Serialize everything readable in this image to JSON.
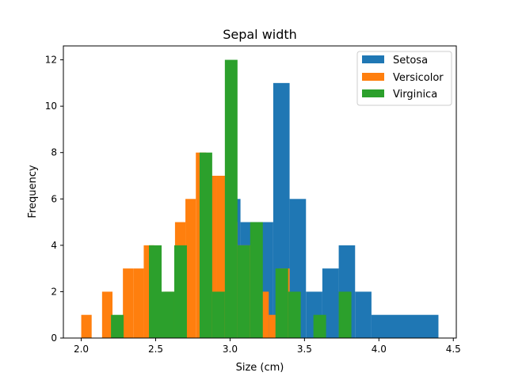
{
  "chart_data": {
    "type": "bar",
    "title": "Sepal width",
    "xlabel": "Size (cm)",
    "ylabel": "Frequency",
    "xlim": [
      1.88,
      4.52
    ],
    "ylim": [
      0,
      12.6
    ],
    "x_ticks": [
      2.0,
      2.5,
      3.0,
      3.5,
      4.0,
      4.5
    ],
    "x_tick_labels": [
      "2.0",
      "2.5",
      "3.0",
      "3.5",
      "4.0",
      "4.5"
    ],
    "y_ticks": [
      0,
      2,
      4,
      6,
      8,
      10,
      12
    ],
    "y_tick_labels": [
      "0",
      "2",
      "4",
      "6",
      "8",
      "10",
      "12"
    ],
    "legend_position": "top-right",
    "grid": false,
    "series": [
      {
        "name": "Setosa",
        "color": "#1f77b4",
        "bins": [
          {
            "x0": 3.29,
            "x1": 3.4,
            "value": 11
          },
          {
            "x0": 3.4,
            "x1": 3.51,
            "value": 6
          },
          {
            "x0": 3.51,
            "x1": 3.62,
            "value": 2
          },
          {
            "x0": 3.62,
            "x1": 3.73,
            "value": 3
          },
          {
            "x0": 3.73,
            "x1": 3.84,
            "value": 4
          },
          {
            "x0": 3.84,
            "x1": 3.95,
            "value": 2
          },
          {
            "x0": 3.95,
            "x1": 4.4,
            "value": 1
          },
          {
            "x0": 3.18,
            "x1": 3.29,
            "value": 5
          },
          {
            "x0": 3.07,
            "x1": 3.18,
            "value": 5
          },
          {
            "x0": 2.96,
            "x1": 3.07,
            "value": 6
          }
        ]
      },
      {
        "name": "Versicolor",
        "color": "#ff7f0e",
        "bins": [
          {
            "x0": 2.0,
            "x1": 2.07,
            "value": 1
          },
          {
            "x0": 2.14,
            "x1": 2.21,
            "value": 2
          },
          {
            "x0": 2.28,
            "x1": 2.35,
            "value": 3
          },
          {
            "x0": 2.35,
            "x1": 2.42,
            "value": 3
          },
          {
            "x0": 2.42,
            "x1": 2.49,
            "value": 4
          },
          {
            "x0": 2.56,
            "x1": 2.63,
            "value": 2
          },
          {
            "x0": 2.63,
            "x1": 2.7,
            "value": 5
          },
          {
            "x0": 2.7,
            "x1": 2.77,
            "value": 6
          },
          {
            "x0": 2.77,
            "x1": 2.84,
            "value": 8
          },
          {
            "x0": 2.84,
            "x1": 2.91,
            "value": 7
          },
          {
            "x0": 2.91,
            "x1": 2.98,
            "value": 7
          },
          {
            "x0": 2.98,
            "x1": 3.05,
            "value": 5
          },
          {
            "x0": 3.05,
            "x1": 3.12,
            "value": 4
          },
          {
            "x0": 3.12,
            "x1": 3.19,
            "value": 4
          },
          {
            "x0": 3.19,
            "x1": 3.26,
            "value": 2
          },
          {
            "x0": 3.26,
            "x1": 3.33,
            "value": 1
          },
          {
            "x0": 3.33,
            "x1": 3.4,
            "value": 3
          }
        ]
      },
      {
        "name": "Virginica",
        "color": "#2ca02c",
        "bins": [
          {
            "x0": 2.2,
            "x1": 2.285,
            "value": 1
          },
          {
            "x0": 2.455,
            "x1": 2.54,
            "value": 4
          },
          {
            "x0": 2.54,
            "x1": 2.625,
            "value": 2
          },
          {
            "x0": 2.625,
            "x1": 2.71,
            "value": 4
          },
          {
            "x0": 2.795,
            "x1": 2.88,
            "value": 8
          },
          {
            "x0": 2.88,
            "x1": 2.965,
            "value": 2
          },
          {
            "x0": 2.965,
            "x1": 3.05,
            "value": 12
          },
          {
            "x0": 3.05,
            "x1": 3.135,
            "value": 4
          },
          {
            "x0": 3.135,
            "x1": 3.22,
            "value": 5
          },
          {
            "x0": 3.305,
            "x1": 3.39,
            "value": 3
          },
          {
            "x0": 3.39,
            "x1": 3.475,
            "value": 2
          },
          {
            "x0": 3.56,
            "x1": 3.645,
            "value": 1
          },
          {
            "x0": 3.73,
            "x1": 3.815,
            "value": 2
          }
        ]
      }
    ]
  }
}
